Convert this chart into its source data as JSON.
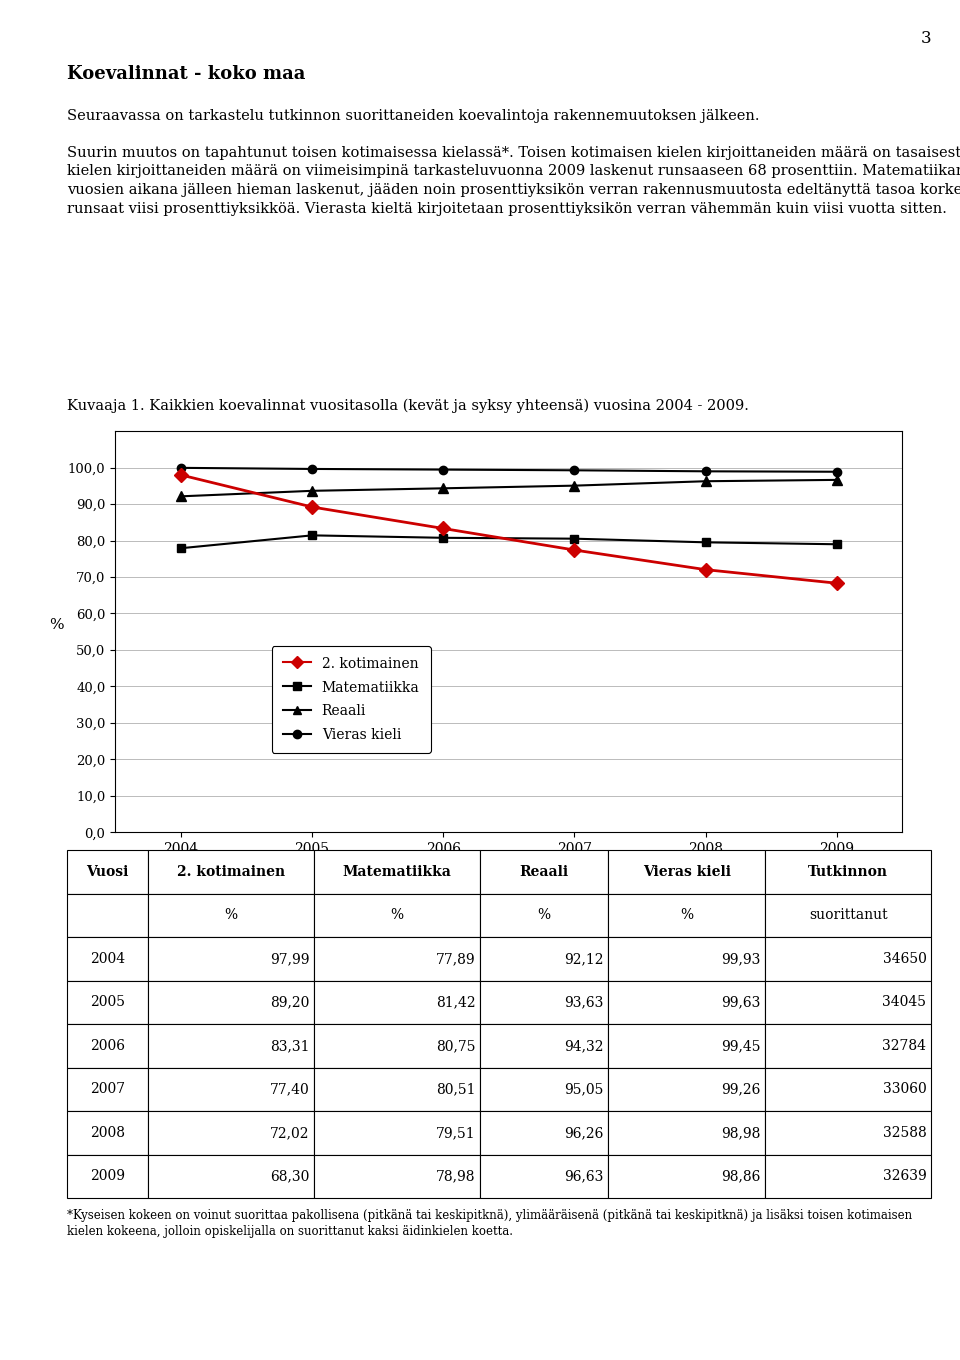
{
  "page_number": "3",
  "title_bold": "Koevalinnat - koko maa",
  "p1": "Seuraavassa on tarkastelu tutkinnon suorittaneiden koevalintoja rakennemuutoksen jälkeen.",
  "p2_line1": "Suurin muutos on tapahtunut toisen kotimaisessa kielassä*. Toisen kotimaisen kielen kirjoittaneiden määrä on tasaisesti vähentynyt tutkintorakenteen muutoksen jälkeen. Vuositasolla toisen kotimaisen",
  "p2_line2": "kielen kirjoittaneiden määrä on viimeisimpinä tarkasteluvuonna 2009 laskenut runsaaseen 68 prosenttiin. Matematiikan kirjoittaneiden osuus on aluksi hieman kasvanut, mutta viimeisten",
  "p2_line3": "vuosien aikana jälleen hieman laskenut, jääden noin prosenttiyksikön verran rakennusmuutosta edeltänyttä tasoa korkeammalle. Sen sijaan reaaliaineiden kokeen suosio on kasvanut tänä aikana",
  "p2_line4": "runsaat viisi prosenttiyksikköä. Vierasta kieltä kirjoitetaan prosenttiyksikön verran vähemmän kuin viisi vuotta sitten.",
  "chart_title": "Kuvaaja 1. Kaikkien koevalinnat vuositasolla (kevät ja syksy yhteensä) vuosina 2004 - 2009.",
  "years": [
    2004,
    2005,
    2006,
    2007,
    2008,
    2009
  ],
  "kotimainen": [
    97.99,
    89.2,
    83.31,
    77.4,
    72.02,
    68.3
  ],
  "matematiikka": [
    77.89,
    81.42,
    80.75,
    80.51,
    79.51,
    78.98
  ],
  "reaali": [
    92.12,
    93.63,
    94.32,
    95.05,
    96.26,
    96.63
  ],
  "vieras_kieli": [
    99.93,
    99.63,
    99.45,
    99.26,
    98.98,
    98.86
  ],
  "kotimainen_color": "#cc0000",
  "ylabel": "%",
  "yticks": [
    0.0,
    10.0,
    20.0,
    30.0,
    40.0,
    50.0,
    60.0,
    70.0,
    80.0,
    90.0,
    100.0
  ],
  "table_col1_header": "Vuosi",
  "table_col2_header": "2. kotimainen",
  "table_col3_header": "Matematiikka",
  "table_col4_header": "Reaali",
  "table_col5_header": "Vieras kieli",
  "table_col6_header": "Tutkinnon",
  "table_col6_header2": "suorittanut",
  "table_pct": "%",
  "table_data": [
    [
      "2004",
      "97,99",
      "77,89",
      "92,12",
      "99,93",
      "34650"
    ],
    [
      "2005",
      "89,20",
      "81,42",
      "93,63",
      "99,63",
      "34045"
    ],
    [
      "2006",
      "83,31",
      "80,75",
      "94,32",
      "99,45",
      "32784"
    ],
    [
      "2007",
      "77,40",
      "80,51",
      "95,05",
      "99,26",
      "33060"
    ],
    [
      "2008",
      "72,02",
      "79,51",
      "96,26",
      "98,98",
      "32588"
    ],
    [
      "2009",
      "68,30",
      "78,98",
      "96,63",
      "98,86",
      "32639"
    ]
  ],
  "footnote_line1": "*Kyseisen kokeen on voinut suorittaa pakollisena (pitkänä tai keskipitknä), ylimääräisenä (pitkänä tai keskipitknä) ja lisäksi toisen kotimaisen",
  "footnote_line2": "kielen kokeena, jolloin opiskelijalla on suorittanut kaksi äidinkielen koetta."
}
